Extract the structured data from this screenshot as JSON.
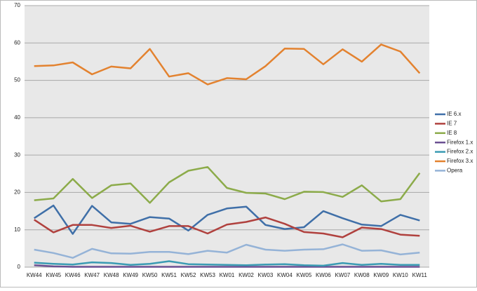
{
  "chart_data": {
    "type": "line",
    "categories": [
      "KW44",
      "KW45",
      "KW46",
      "KW47",
      "KW48",
      "KW49",
      "KW50",
      "KW51",
      "KW52",
      "KW53",
      "KW01",
      "KW02",
      "KW03",
      "KW04",
      "KW05",
      "KW06",
      "KW07",
      "KW08",
      "KW09",
      "KW10",
      "KW11"
    ],
    "series": [
      {
        "name": "IE 6.x",
        "color": "#3f6fa8",
        "values": [
          13.1,
          16.5,
          8.9,
          16.4,
          12,
          11.6,
          13.4,
          13,
          9.8,
          14,
          15.7,
          16.2,
          11.3,
          10.2,
          10.7,
          15.0,
          13.1,
          11.4,
          11,
          14.0,
          12.5
        ]
      },
      {
        "name": "IE 7",
        "color": "#b0413e",
        "values": [
          12.7,
          9.3,
          11.3,
          11.3,
          10.5,
          11.1,
          9.5,
          11,
          11,
          9,
          11.4,
          12.1,
          13.3,
          11.6,
          9.4,
          9,
          8,
          10.6,
          10.2,
          8.7,
          8.4
        ]
      },
      {
        "name": "IE 8",
        "color": "#8cab4a",
        "values": [
          17.9,
          18.4,
          23.6,
          18.5,
          21.9,
          22.4,
          17.2,
          22.7,
          25.8,
          26.8,
          21.2,
          19.9,
          19.7,
          18.2,
          20.2,
          20.1,
          18.8,
          21.9,
          17.6,
          18.2,
          25.2
        ]
      },
      {
        "name": "Firefox 1.x",
        "color": "#6b4f92",
        "values": [
          0.5,
          0.2,
          0.1,
          0.1,
          0.1,
          0.1,
          0.1,
          0.1,
          0.1,
          0.1,
          0.1,
          0.1,
          0.1,
          0.1,
          0.1,
          0.1,
          0.1,
          0.1,
          0.1,
          0.1,
          0.1
        ]
      },
      {
        "name": "Firefox 2.x",
        "color": "#3a9bb3",
        "values": [
          1.2,
          0.9,
          0.7,
          1.3,
          1.1,
          0.6,
          0.9,
          1.6,
          0.8,
          0.7,
          0.6,
          0.5,
          0.7,
          0.8,
          0.5,
          0.4,
          1.1,
          0.6,
          0.9,
          0.6,
          0.6
        ]
      },
      {
        "name": "Firefox 3.x",
        "color": "#e3822f",
        "values": [
          53.8,
          54,
          54.8,
          51.6,
          53.7,
          53.2,
          58.4,
          51,
          51.9,
          48.9,
          50.6,
          50.3,
          53.8,
          58.5,
          58.4,
          54.3,
          58.3,
          55,
          59.6,
          57.7,
          51.9
        ]
      },
      {
        "name": "Opera",
        "color": "#95b3d7",
        "values": [
          4.7,
          3.8,
          2.5,
          4.9,
          3.7,
          3.6,
          4.1,
          4.1,
          3.5,
          4.4,
          3.9,
          6.0,
          4.7,
          4.4,
          4.7,
          4.8,
          6.1,
          4.4,
          4.5,
          3.4,
          3.9
        ]
      }
    ],
    "ylim": [
      0,
      70
    ],
    "yticks": [
      0,
      10,
      20,
      30,
      40,
      50,
      60,
      70
    ],
    "grid": true,
    "legend": "right"
  }
}
